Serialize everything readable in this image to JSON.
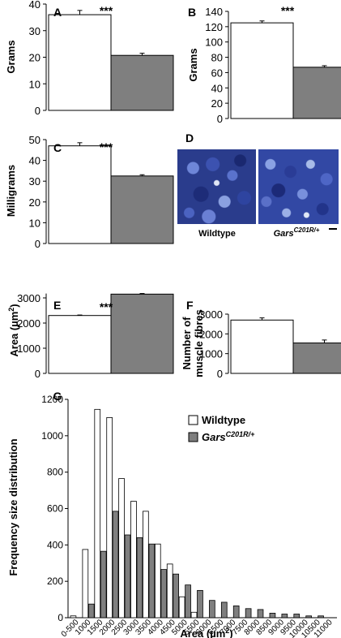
{
  "colors": {
    "wildtype": "#ffffff",
    "gars": "#7f7f7f",
    "stroke": "#000000"
  },
  "chart_data": [
    {
      "panel": "A",
      "type": "bar",
      "ylabel": "Grams",
      "ylim": [
        0,
        40
      ],
      "yticks": [
        0,
        10,
        20,
        30,
        40
      ],
      "significance": "***",
      "values": [
        36,
        20.7
      ],
      "errors": [
        1.6,
        0.8
      ]
    },
    {
      "panel": "B",
      "type": "bar",
      "ylabel": "Grams",
      "ylim": [
        0,
        140
      ],
      "yticks": [
        0,
        20,
        40,
        60,
        80,
        100,
        120,
        140
      ],
      "significance": "***",
      "values": [
        125,
        67
      ],
      "errors": [
        2.5,
        2
      ]
    },
    {
      "panel": "C",
      "type": "bar",
      "ylabel": "Milligrams",
      "ylim": [
        0,
        50
      ],
      "yticks": [
        0,
        10,
        20,
        30,
        40,
        50
      ],
      "significance": "***",
      "values": [
        47,
        32.5
      ],
      "errors": [
        1.5,
        0.6
      ]
    },
    {
      "panel": "E",
      "type": "bar",
      "ylabel": "Area (µm²)",
      "ylim": [
        0,
        3000
      ],
      "yticks": [
        0,
        1000,
        2000,
        3000
      ],
      "significance": "***",
      "values": [
        2300,
        3150
      ],
      "errors": [
        20,
        25
      ]
    },
    {
      "panel": "F",
      "type": "bar",
      "ylabel": "Number of muscle fibres",
      "ylim": [
        0,
        3000
      ],
      "yticks": [
        0,
        1000,
        2000,
        3000
      ],
      "significance": "",
      "values": [
        2700,
        1540
      ],
      "errors": [
        110,
        150
      ]
    },
    {
      "panel": "G",
      "type": "bar",
      "xlabel": "Area (µm²)",
      "ylabel": "Frequency size distribution",
      "ylim": [
        0,
        1200
      ],
      "yticks": [
        0,
        200,
        400,
        600,
        800,
        1000,
        1200
      ],
      "legend": "top-right",
      "categories": [
        "0-500",
        "1000",
        "1500",
        "2000",
        "2500",
        "3000",
        "3500",
        "4000",
        "4500",
        "5000",
        "5500",
        "6000",
        "6500",
        "7000",
        "7500",
        "8000",
        "8500",
        "9000",
        "9500",
        "10000",
        "10500",
        "11000"
      ],
      "series": [
        {
          "name": "Wildtype",
          "values": [
            10,
            375,
            1145,
            1100,
            765,
            640,
            585,
            405,
            295,
            115,
            30,
            0,
            0,
            0,
            0,
            0,
            0,
            0,
            0,
            0,
            0,
            0
          ]
        },
        {
          "name": "GarsC201R/+",
          "values": [
            0,
            75,
            365,
            585,
            455,
            440,
            405,
            265,
            240,
            180,
            150,
            95,
            85,
            65,
            50,
            45,
            25,
            20,
            20,
            10,
            10,
            0
          ]
        }
      ]
    }
  ],
  "micrograph": {
    "panel": "D",
    "captions": [
      "Wildtype",
      "Gars",
      "C201R/+"
    ]
  }
}
